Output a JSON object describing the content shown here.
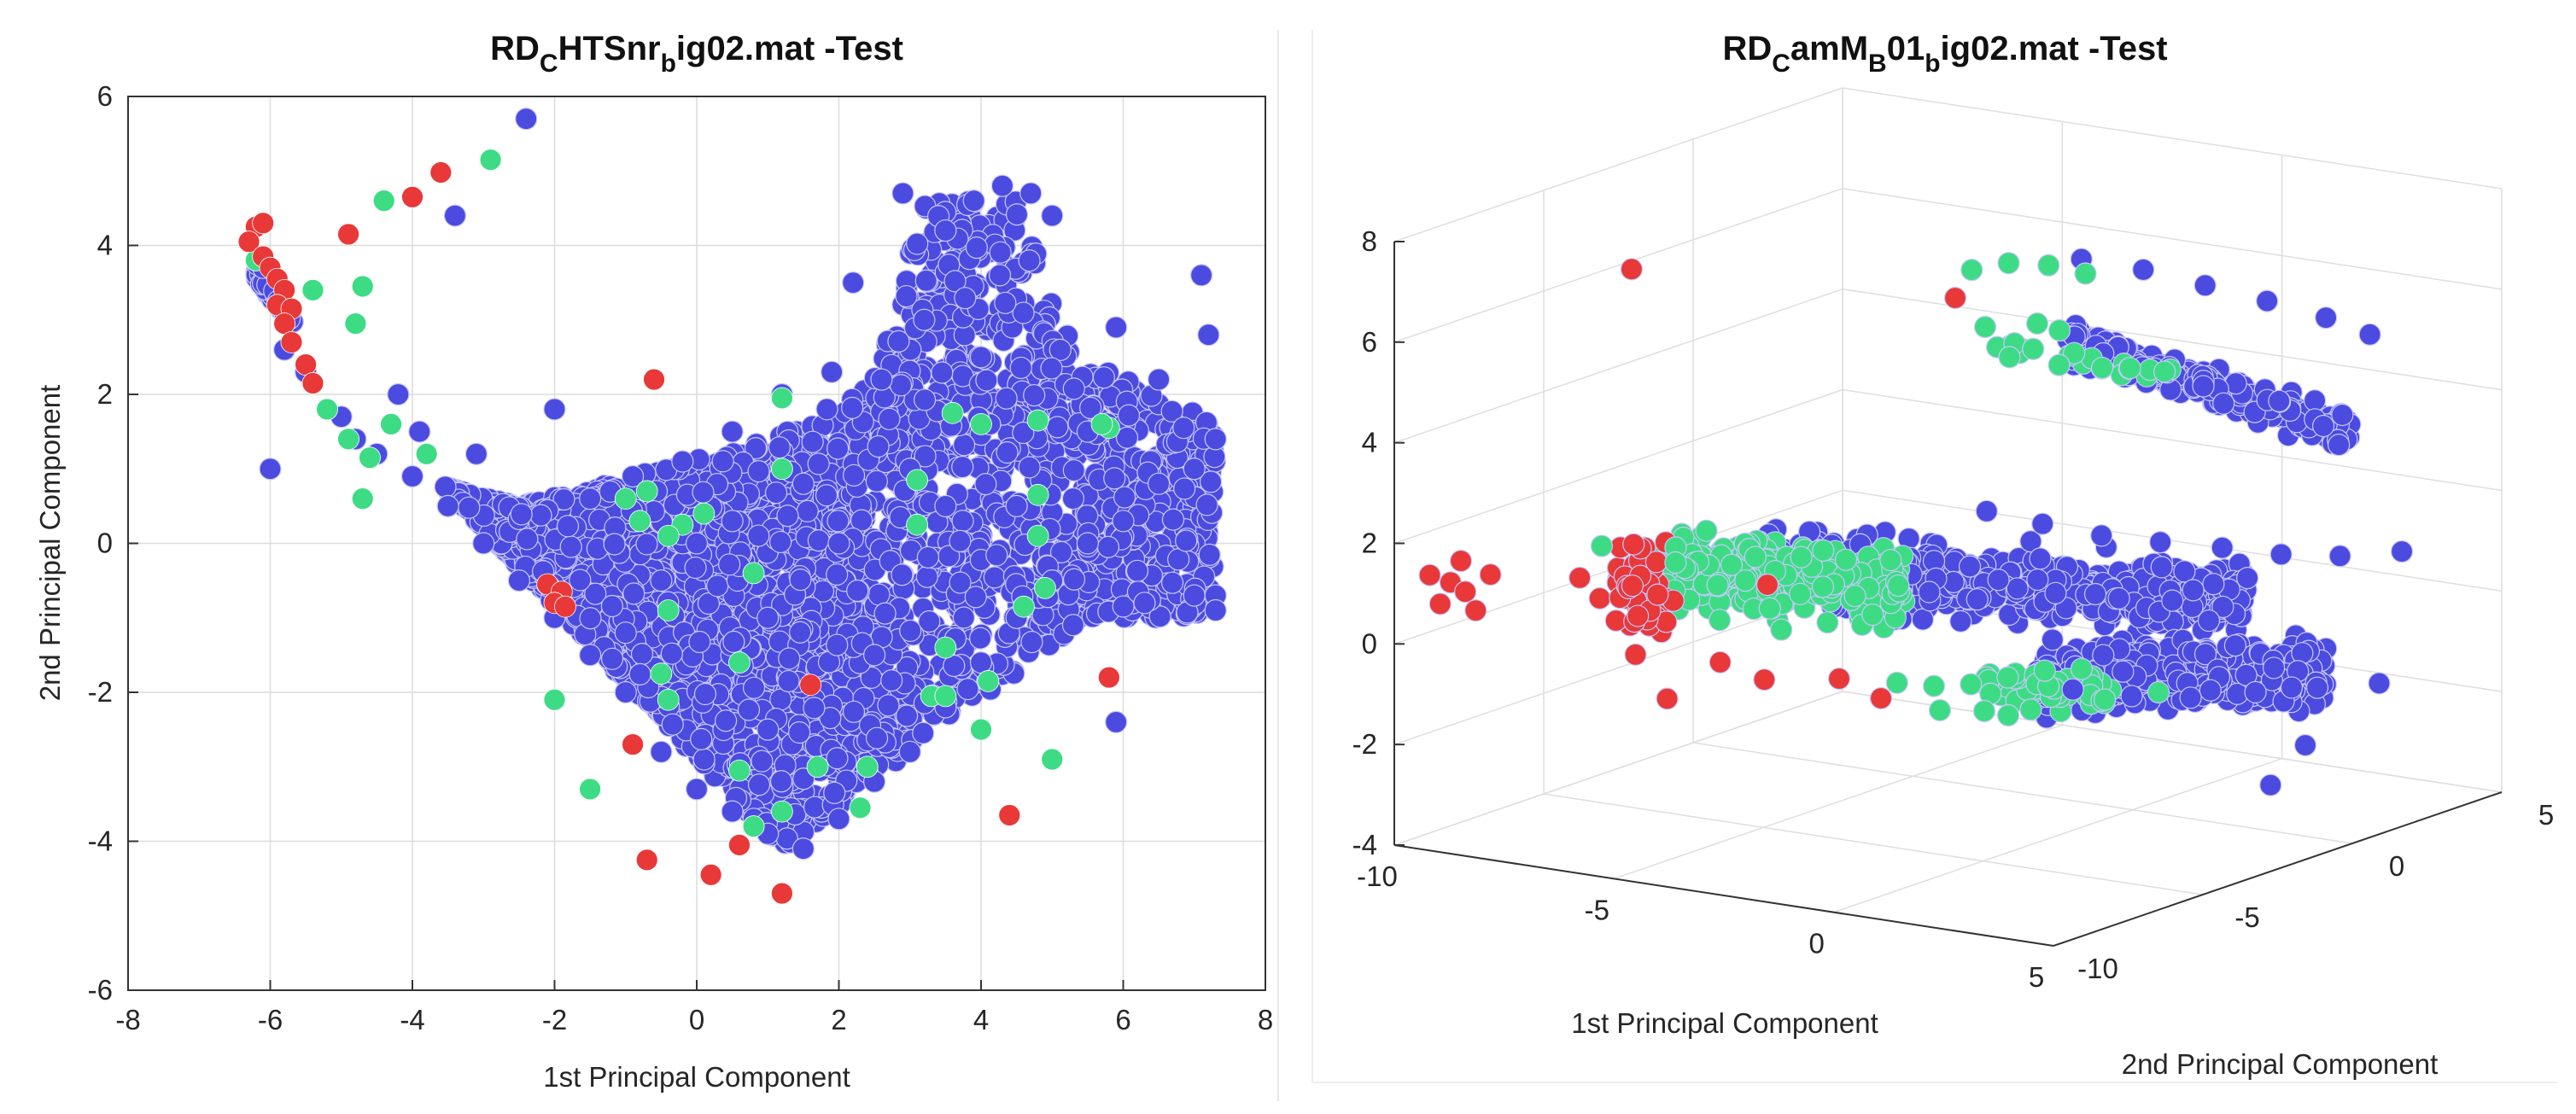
{
  "chart_data": [
    {
      "type": "scatter",
      "title": {
        "main": "RD",
        "s1": "C",
        "mid": "HTSnr",
        "s2": "b",
        "end": "ig02.mat -Test"
      },
      "xlabel": "1st Principal Component",
      "ylabel": "2nd Principal Component",
      "xlim": [
        -8,
        8
      ],
      "ylim": [
        -6,
        6
      ],
      "xticks": [
        -8,
        -6,
        -4,
        -2,
        0,
        2,
        4,
        6,
        8
      ],
      "yticks": [
        -6,
        -4,
        -2,
        0,
        2,
        4,
        6
      ],
      "grid": true,
      "series": [
        {
          "name": "class-blue",
          "color": "#4b4be0",
          "approx_count": 3600,
          "points": [
            [
              -2.4,
              5.7
            ],
            [
              -3.4,
              4.4
            ],
            [
              -6.1,
              3.7
            ],
            [
              -5.8,
              2.6
            ],
            [
              -5.5,
              2.3
            ],
            [
              -5.0,
              1.7
            ],
            [
              -4.5,
              1.2
            ],
            [
              -4.0,
              0.9
            ],
            [
              -3.5,
              0.5
            ],
            [
              -3.0,
              0.0
            ],
            [
              -2.5,
              -0.5
            ],
            [
              -2.0,
              -1.0
            ],
            [
              -1.5,
              -1.5
            ],
            [
              -1.0,
              -2.0
            ],
            [
              -0.5,
              -2.8
            ],
            [
              0.0,
              -3.3
            ],
            [
              0.5,
              -3.6
            ],
            [
              1.0,
              -3.9
            ],
            [
              1.5,
              -4.1
            ],
            [
              2.0,
              -3.7
            ],
            [
              2.5,
              -3.2
            ],
            [
              3.0,
              -2.8
            ],
            [
              3.5,
              -2.2
            ],
            [
              4.0,
              -1.6
            ],
            [
              4.5,
              -1.0
            ],
            [
              5.0,
              -0.5
            ],
            [
              5.5,
              0.0
            ],
            [
              6.0,
              0.3
            ],
            [
              6.5,
              0.8
            ],
            [
              7.0,
              1.0
            ],
            [
              7.3,
              1.4
            ],
            [
              7.2,
              2.8
            ],
            [
              7.1,
              3.6
            ],
            [
              6.5,
              2.2
            ],
            [
              5.9,
              2.9
            ],
            [
              5.0,
              4.4
            ],
            [
              4.7,
              4.7
            ],
            [
              4.3,
              4.8
            ],
            [
              3.9,
              4.6
            ],
            [
              3.5,
              4.2
            ],
            [
              2.9,
              4.7
            ],
            [
              3.2,
              3.0
            ],
            [
              2.6,
              2.2
            ],
            [
              1.9,
              2.3
            ],
            [
              1.2,
              2.0
            ],
            [
              0.5,
              1.5
            ],
            [
              -0.2,
              1.1
            ],
            [
              -0.9,
              0.9
            ],
            [
              -1.5,
              0.6
            ],
            [
              -2.0,
              1.8
            ],
            [
              -3.1,
              1.2
            ],
            [
              -3.9,
              1.5
            ],
            [
              -4.8,
              1.4
            ],
            [
              -6.0,
              1.0
            ],
            [
              -4.2,
              2.0
            ],
            [
              5.9,
              -2.4
            ],
            [
              6.3,
              -0.8
            ],
            [
              7.3,
              -0.7
            ],
            [
              7.3,
              -0.9
            ],
            [
              7.0,
              -0.7
            ],
            [
              0.0,
              0.0
            ],
            [
              1.0,
              -1.0
            ],
            [
              2.0,
              0.0
            ],
            [
              3.0,
              1.0
            ],
            [
              2.5,
              -1.5
            ],
            [
              1.5,
              0.8
            ],
            [
              -0.5,
              -0.5
            ],
            [
              0.5,
              0.3
            ],
            [
              3.5,
              0.5
            ],
            [
              4.0,
              2.5
            ],
            [
              2.2,
              3.5
            ],
            [
              1.0,
              -2.5
            ],
            [
              -1.0,
              -1.2
            ],
            [
              4.5,
              0.5
            ],
            [
              5.5,
              1.5
            ]
          ]
        },
        {
          "name": "class-green",
          "color": "#3ddc84",
          "points": [
            [
              -2.9,
              5.15
            ],
            [
              -4.4,
              4.6
            ],
            [
              -4.7,
              3.45
            ],
            [
              -4.8,
              2.95
            ],
            [
              -5.4,
              3.4
            ],
            [
              -6.2,
              3.8
            ],
            [
              -5.2,
              1.8
            ],
            [
              -4.9,
              1.4
            ],
            [
              -4.6,
              1.15
            ],
            [
              -4.3,
              1.6
            ],
            [
              -3.8,
              1.2
            ],
            [
              -4.7,
              0.6
            ],
            [
              -1.0,
              0.6
            ],
            [
              -0.7,
              0.7
            ],
            [
              -0.8,
              0.3
            ],
            [
              -0.2,
              0.25
            ],
            [
              -0.4,
              0.1
            ],
            [
              0.1,
              0.4
            ],
            [
              0.8,
              -0.4
            ],
            [
              1.2,
              1.0
            ],
            [
              1.2,
              1.95
            ],
            [
              3.1,
              0.85
            ],
            [
              3.1,
              0.25
            ],
            [
              3.6,
              1.75
            ],
            [
              4.0,
              1.6
            ],
            [
              4.8,
              1.65
            ],
            [
              4.8,
              0.65
            ],
            [
              4.9,
              -0.6
            ],
            [
              4.6,
              -0.85
            ],
            [
              4.8,
              0.1
            ],
            [
              5.8,
              1.55
            ],
            [
              -0.4,
              -0.9
            ],
            [
              -0.5,
              -1.75
            ],
            [
              -0.4,
              -2.1
            ],
            [
              -2.0,
              -2.1
            ],
            [
              0.6,
              -1.6
            ],
            [
              3.5,
              -1.4
            ],
            [
              3.3,
              -2.05
            ],
            [
              3.5,
              -2.05
            ],
            [
              4.1,
              -1.85
            ],
            [
              4.0,
              -2.5
            ],
            [
              5.0,
              -2.9
            ],
            [
              1.7,
              -3.0
            ],
            [
              2.4,
              -3.0
            ],
            [
              0.6,
              -3.05
            ],
            [
              1.2,
              -3.6
            ],
            [
              0.8,
              -3.8
            ],
            [
              -1.5,
              -3.3
            ],
            [
              2.3,
              -3.55
            ],
            [
              5.7,
              1.6
            ]
          ]
        },
        {
          "name": "class-red",
          "color": "#e83838",
          "points": [
            [
              -6.2,
              4.25
            ],
            [
              -6.1,
              4.3
            ],
            [
              -6.3,
              4.05
            ],
            [
              -6.1,
              3.85
            ],
            [
              -6.0,
              3.7
            ],
            [
              -5.9,
              3.55
            ],
            [
              -5.8,
              3.4
            ],
            [
              -5.9,
              3.2
            ],
            [
              -5.7,
              3.15
            ],
            [
              -5.8,
              2.95
            ],
            [
              -5.7,
              2.7
            ],
            [
              -5.5,
              2.4
            ],
            [
              -5.4,
              2.15
            ],
            [
              -4.9,
              4.15
            ],
            [
              -4.0,
              4.65
            ],
            [
              -3.6,
              4.98
            ],
            [
              -0.6,
              2.2
            ],
            [
              -2.1,
              -0.55
            ],
            [
              -1.9,
              -0.65
            ],
            [
              -2.0,
              -0.8
            ],
            [
              -1.85,
              -0.85
            ],
            [
              1.6,
              -1.9
            ],
            [
              5.8,
              -1.8
            ],
            [
              -0.9,
              -2.7
            ],
            [
              4.4,
              -3.65
            ],
            [
              -0.7,
              -4.25
            ],
            [
              0.6,
              -4.05
            ],
            [
              0.2,
              -4.45
            ],
            [
              1.2,
              -4.7
            ]
          ]
        }
      ]
    },
    {
      "type": "scatter",
      "title": {
        "main": "RD",
        "s1": "C",
        "mid": "amM",
        "s2": "B",
        "mid2": "01",
        "s3": "b",
        "end": "ig02.mat -Test"
      },
      "xlabel": "1st Principal Component",
      "ylabel": "2nd Principal Component",
      "xlim": [
        -10,
        5
      ],
      "ylim": [
        -10,
        5
      ],
      "zlim": [
        -4,
        8
      ],
      "xticks": [
        -10,
        -5,
        0,
        5
      ],
      "yticks": [
        -10,
        -5,
        0,
        5
      ],
      "zticks": [
        -4,
        -2,
        0,
        2,
        4,
        6,
        8
      ],
      "grid": true,
      "series": [
        {
          "name": "class-blue",
          "color": "#4b4be0",
          "points": [
            [
              -3,
              2.7,
              6.0
            ],
            [
              -2,
              3.3,
              5.8
            ],
            [
              -1,
              3.9,
              5.5
            ],
            [
              0,
              4.5,
              5.2
            ],
            [
              1,
              5.0,
              4.9
            ],
            [
              2,
              5.0,
              4.7
            ],
            [
              -4,
              1.0,
              1.2
            ],
            [
              -3,
              1.4,
              1.0
            ],
            [
              -2,
              1.9,
              0.8
            ],
            [
              -1,
              2.4,
              0.7
            ],
            [
              0,
              3.0,
              0.6
            ],
            [
              1,
              3.5,
              0.5
            ],
            [
              2,
              4.0,
              0.5
            ],
            [
              3,
              4.6,
              0.6
            ],
            [
              0,
              -2,
              -1.2
            ],
            [
              1,
              -1.5,
              -1.3
            ],
            [
              2,
              -1,
              -1.3
            ],
            [
              3,
              -0.3,
              -1.2
            ],
            [
              4,
              0.3,
              -1.1
            ],
            [
              5,
              0.9,
              -1.0
            ],
            [
              4.5,
              -2,
              -2.5
            ]
          ]
        },
        {
          "name": "class-green",
          "color": "#3ddc84",
          "points": [
            [
              -4,
              0.5,
              6.1
            ],
            [
              -3.5,
              1.0,
              6.2
            ],
            [
              -3,
              1.6,
              6.1
            ],
            [
              -2.5,
              2.1,
              5.9
            ],
            [
              -8,
              -6,
              1.4
            ],
            [
              -7,
              -5,
              1.3
            ],
            [
              -6,
              -4,
              1.2
            ],
            [
              -5,
              -3,
              1.1
            ],
            [
              -6,
              -3.8,
              1.0
            ],
            [
              -5.5,
              -3,
              0.9
            ],
            [
              -7,
              -5,
              1.0
            ],
            [
              -4,
              -2,
              -1.6
            ],
            [
              -3.5,
              -1.5,
              -1.7
            ],
            [
              -3,
              -1,
              -1.7
            ],
            [
              -2.5,
              -0.5,
              -1.6
            ],
            [
              -2,
              0,
              -1.5
            ],
            [
              -1.5,
              0.5,
              -1.5
            ]
          ]
        },
        {
          "name": "class-red",
          "color": "#e83838",
          "points": [
            [
              -8,
              -5,
              6.7
            ],
            [
              -9.6,
              -9.4,
              1.3
            ],
            [
              -9.4,
              -9.0,
              1.1
            ],
            [
              -9.2,
              -8.8,
              0.9
            ],
            [
              -9.5,
              -9.2,
              0.7
            ],
            [
              -9.3,
              -8.8,
              1.5
            ],
            [
              -9.1,
              -8.6,
              0.5
            ],
            [
              -8.9,
              -8.4,
              1.2
            ],
            [
              -8.5,
              -6,
              0.7
            ],
            [
              -6.8,
              -3.8,
              -1.2
            ],
            [
              -6.0,
              -3.5,
              -1.5
            ]
          ]
        }
      ]
    }
  ]
}
